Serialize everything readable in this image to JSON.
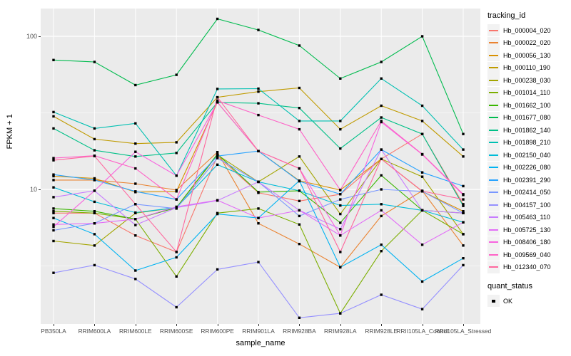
{
  "figure": {
    "xlabel": "sample_name",
    "ylabel": "FPKM + 1",
    "legend_title": "tracking_id",
    "quant_legend_title": "quant_status",
    "quant_legend_value": "OK"
  },
  "colors": {
    "page_bg": "#FFFFFF",
    "panel_bg": "#EBEBEB",
    "grid_major": "#FFFFFF",
    "grid_minor": "#F7F7F7",
    "tick_label": "#4D4D4D",
    "legend_key_bg": "#F2F2F2",
    "point": "#000000"
  },
  "chart_data": {
    "type": "line",
    "title": "",
    "xlabel": "sample_name",
    "ylabel": "FPKM + 1",
    "y_scale": "log10",
    "y_ticks": [
      {
        "value": 10,
        "label": "10"
      },
      {
        "value": 100,
        "label": "100"
      }
    ],
    "y_minor_ticks": [
      3.162,
      31.62
    ],
    "ylim": [
      1.3,
      155
    ],
    "grid": true,
    "legend_position": "right",
    "legend_title": "tracking_id",
    "point_marker": "black-square",
    "categories": [
      "PB350LA",
      "RRIM600LA",
      "RRIM600LE",
      "RRIM600SE",
      "RRIM600PE",
      "RRIM901LA",
      "RRIM928BA",
      "RRIM928LA",
      "RRIM928LE",
      "RRII105LA_Control",
      "RRII105LA_Stressed"
    ],
    "series": [
      {
        "name": "Hb_000004_020",
        "color": "#F8766D",
        "values": [
          7.0,
          7.0,
          5.0,
          3.9,
          16.5,
          9.5,
          8.4,
          9.3,
          15.8,
          23.0,
          8.0
        ]
      },
      {
        "name": "Hb_000022_020",
        "color": "#EA8331",
        "values": [
          11.5,
          11.5,
          10.9,
          9.9,
          17.5,
          6.0,
          4.4,
          3.1,
          6.7,
          9.8,
          4.3
        ]
      },
      {
        "name": "Hb_000056_130",
        "color": "#D89000",
        "values": [
          12.2,
          11.8,
          9.6,
          9.7,
          37.0,
          17.8,
          11.4,
          9.9,
          15.8,
          9.7,
          7.2
        ]
      },
      {
        "name": "Hb_000110_190",
        "color": "#C09B00",
        "values": [
          30.0,
          21.3,
          19.9,
          20.3,
          40.0,
          43.5,
          46.0,
          24.7,
          35.2,
          28.0,
          16.4
        ]
      },
      {
        "name": "Hb_000238_030",
        "color": "#A3A500",
        "values": [
          4.6,
          4.3,
          7.0,
          7.6,
          16.8,
          11.2,
          16.4,
          6.9,
          15.8,
          12.1,
          5.1
        ]
      },
      {
        "name": "Hb_001014_110",
        "color": "#7CAE00",
        "values": [
          7.2,
          7.0,
          6.4,
          2.7,
          7.0,
          7.5,
          5.9,
          1.55,
          3.95,
          7.3,
          5.1
        ]
      },
      {
        "name": "Hb_001662_100",
        "color": "#39B600",
        "values": [
          7.5,
          7.2,
          6.4,
          7.6,
          17.0,
          9.6,
          9.8,
          6.05,
          12.35,
          7.3,
          7.0
        ]
      },
      {
        "name": "Hb_001677_080",
        "color": "#00BB4E",
        "values": [
          70.0,
          68.0,
          48.0,
          56.0,
          130.0,
          110.0,
          87.0,
          53.0,
          68.0,
          100.0,
          23.0
        ]
      },
      {
        "name": "Hb_001862_140",
        "color": "#00C087",
        "values": [
          25.0,
          18.0,
          16.4,
          17.3,
          37.0,
          36.5,
          34.0,
          18.5,
          29.5,
          23.0,
          7.8
        ]
      },
      {
        "name": "Hb_001898_210",
        "color": "#00C0B2",
        "values": [
          32.0,
          25.0,
          27.0,
          12.3,
          45.3,
          45.5,
          28.0,
          28.0,
          53.0,
          35.2,
          18.2
        ]
      },
      {
        "name": "Hb_002150_040",
        "color": "#00BCD8",
        "values": [
          10.3,
          8.3,
          7.05,
          7.6,
          14.5,
          11.2,
          9.8,
          7.85,
          8.0,
          7.3,
          6.1
        ]
      },
      {
        "name": "Hb_002226_080",
        "color": "#00B3F2",
        "values": [
          6.5,
          5.1,
          2.95,
          3.6,
          6.9,
          6.5,
          11.4,
          3.1,
          4.35,
          2.5,
          3.55
        ]
      },
      {
        "name": "Hb_002391_290",
        "color": "#29A3FF",
        "values": [
          12.5,
          11.5,
          9.7,
          8.6,
          16.5,
          17.8,
          11.3,
          9.3,
          18.2,
          12.9,
          10.5
        ]
      },
      {
        "name": "Hb_002414_050",
        "color": "#7997FF",
        "values": [
          5.4,
          6.0,
          8.0,
          7.5,
          16.0,
          11.2,
          6.7,
          8.6,
          10.0,
          9.7,
          7.0
        ]
      },
      {
        "name": "Hb_004157_100",
        "color": "#9590FF",
        "values": [
          2.85,
          3.2,
          2.6,
          1.7,
          3.0,
          3.35,
          1.45,
          1.55,
          2.05,
          1.65,
          3.2
        ]
      },
      {
        "name": "Hb_005463_110",
        "color": "#C77CFF",
        "values": [
          8.9,
          9.8,
          5.85,
          7.6,
          8.45,
          11.2,
          7.3,
          5.5,
          18.2,
          7.3,
          7.0
        ]
      },
      {
        "name": "Hb_005725_130",
        "color": "#E26EF7",
        "values": [
          5.9,
          6.0,
          6.4,
          7.7,
          8.5,
          6.5,
          7.3,
          5.0,
          7.3,
          4.35,
          6.1
        ]
      },
      {
        "name": "Hb_008406_180",
        "color": "#F863DF",
        "values": [
          5.7,
          9.8,
          17.6,
          12.3,
          37.0,
          17.8,
          13.7,
          5.0,
          27.5,
          16.9,
          9.2
        ]
      },
      {
        "name": "Hb_009569_040",
        "color": "#FF61C7",
        "values": [
          16.0,
          16.6,
          13.7,
          8.6,
          38.0,
          30.6,
          24.7,
          9.9,
          28.0,
          17.0,
          9.3
        ]
      },
      {
        "name": "Hb_012340_070",
        "color": "#FF689E",
        "values": [
          15.5,
          16.5,
          8.0,
          3.9,
          40.0,
          17.8,
          13.7,
          3.9,
          15.8,
          9.75,
          8.6
        ]
      }
    ],
    "extra_legend": {
      "title": "quant_status",
      "entries": [
        {
          "label": "OK",
          "marker": "black-square"
        }
      ]
    }
  }
}
